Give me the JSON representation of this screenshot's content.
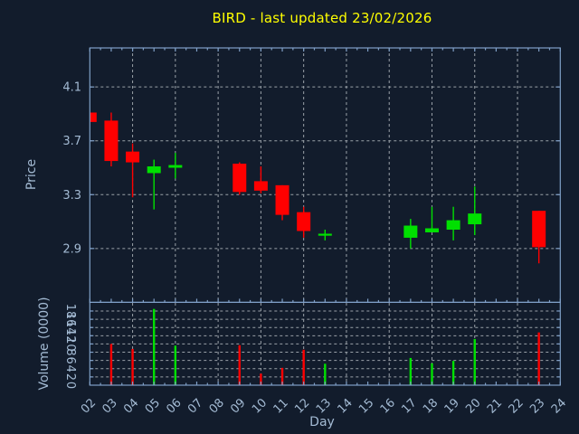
{
  "title": {
    "text": "BIRD - last updated 23/02/2026",
    "color": "#ffff00"
  },
  "colors": {
    "background": "#121c2c",
    "border": "#7f9fc7",
    "grid": "#9aa1a8",
    "tick_text": "#a3bad3",
    "up": "#00e000",
    "down": "#ff0000",
    "title": "#ffff00"
  },
  "chart_data": [
    {
      "type": "candlestick",
      "panel": "price",
      "xlabel": "Day",
      "ylabel": "Price",
      "x_tick_labels": [
        "02",
        "03",
        "04",
        "05",
        "06",
        "07",
        "08",
        "09",
        "10",
        "11",
        "12",
        "13",
        "14",
        "15",
        "16",
        "17",
        "18",
        "19",
        "20",
        "21",
        "22",
        "23",
        "24"
      ],
      "y_tick_values": [
        2.9,
        3.3,
        3.7,
        4.1
      ],
      "ylim": [
        2.5,
        4.39
      ],
      "grid": true,
      "legend": "none",
      "candles": [
        {
          "day": "02",
          "open": 3.91,
          "high": 3.91,
          "low": 3.84,
          "close": 3.84,
          "dir": "down"
        },
        {
          "day": "03",
          "open": 3.85,
          "high": 3.91,
          "low": 3.51,
          "close": 3.55,
          "dir": "down"
        },
        {
          "day": "04",
          "open": 3.62,
          "high": 3.68,
          "low": 3.28,
          "close": 3.54,
          "dir": "down"
        },
        {
          "day": "05",
          "open": 3.46,
          "high": 3.56,
          "low": 3.19,
          "close": 3.51,
          "dir": "up"
        },
        {
          "day": "06",
          "open": 3.5,
          "high": 3.61,
          "low": 3.42,
          "close": 3.52,
          "dir": "up"
        },
        {
          "day": "09",
          "open": 3.53,
          "high": 3.54,
          "low": 3.3,
          "close": 3.32,
          "dir": "down"
        },
        {
          "day": "10",
          "open": 3.4,
          "high": 3.51,
          "low": 3.31,
          "close": 3.33,
          "dir": "down"
        },
        {
          "day": "11",
          "open": 3.37,
          "high": 3.37,
          "low": 3.11,
          "close": 3.15,
          "dir": "down"
        },
        {
          "day": "12",
          "open": 3.17,
          "high": 3.21,
          "low": 2.98,
          "close": 3.03,
          "dir": "down"
        },
        {
          "day": "13",
          "open": 3.0,
          "high": 3.04,
          "low": 2.96,
          "close": 3.01,
          "dir": "up"
        },
        {
          "day": "17",
          "open": 2.98,
          "high": 3.12,
          "low": 2.9,
          "close": 3.07,
          "dir": "up"
        },
        {
          "day": "18",
          "open": 3.02,
          "high": 3.21,
          "low": 3.02,
          "close": 3.05,
          "dir": "up"
        },
        {
          "day": "19",
          "open": 3.04,
          "high": 3.21,
          "low": 2.96,
          "close": 3.11,
          "dir": "up"
        },
        {
          "day": "20",
          "open": 3.08,
          "high": 3.36,
          "low": 3.0,
          "close": 3.16,
          "dir": "up"
        },
        {
          "day": "23",
          "open": 3.18,
          "high": 3.18,
          "low": 2.79,
          "close": 2.91,
          "dir": "down"
        }
      ]
    },
    {
      "type": "bar",
      "panel": "volume",
      "ylabel": "Volume (0000)",
      "y_tick_values": [
        0,
        2,
        4,
        6,
        8,
        10,
        12,
        14,
        16,
        18
      ],
      "ylim": [
        0,
        20.1
      ],
      "grid": true,
      "bars": [
        {
          "day": "03",
          "value": 10.0,
          "dir": "down"
        },
        {
          "day": "04",
          "value": 8.8,
          "dir": "down"
        },
        {
          "day": "05",
          "value": 18.5,
          "dir": "up"
        },
        {
          "day": "06",
          "value": 9.6,
          "dir": "up"
        },
        {
          "day": "09",
          "value": 9.7,
          "dir": "down"
        },
        {
          "day": "10",
          "value": 2.8,
          "dir": "down"
        },
        {
          "day": "11",
          "value": 4.2,
          "dir": "down"
        },
        {
          "day": "12",
          "value": 8.6,
          "dir": "down"
        },
        {
          "day": "13",
          "value": 5.2,
          "dir": "up"
        },
        {
          "day": "17",
          "value": 6.6,
          "dir": "up"
        },
        {
          "day": "18",
          "value": 5.3,
          "dir": "up"
        },
        {
          "day": "19",
          "value": 5.9,
          "dir": "up"
        },
        {
          "day": "20",
          "value": 11.2,
          "dir": "up"
        },
        {
          "day": "23",
          "value": 12.8,
          "dir": "down"
        }
      ]
    }
  ]
}
